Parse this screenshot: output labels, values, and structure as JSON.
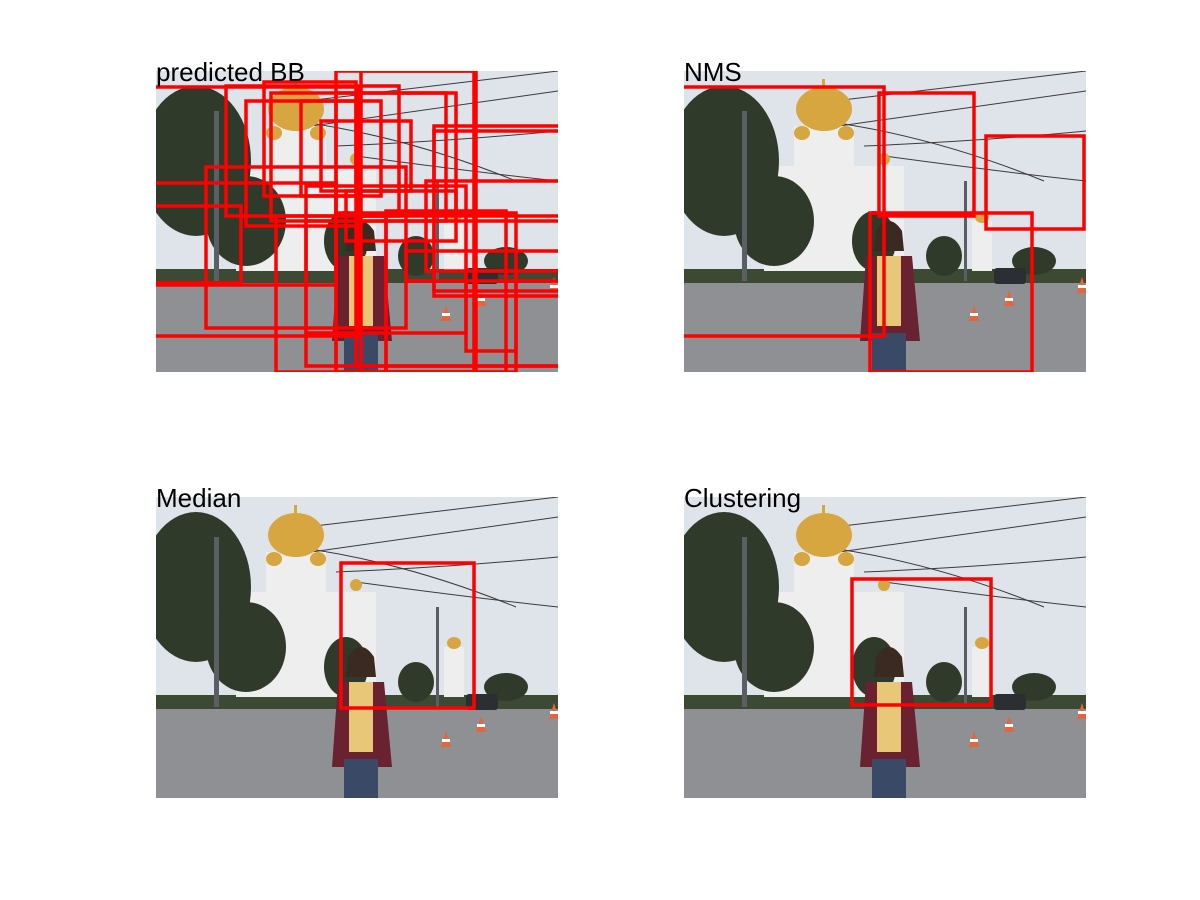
{
  "panels": [
    {
      "title": "predicted BB"
    },
    {
      "title": "NMS"
    },
    {
      "title": "Median"
    },
    {
      "title": "Clustering"
    }
  ],
  "colors": {
    "box": "#ff0000",
    "sky": "#dfe4ea",
    "road": "#8f9094",
    "tree": "#2f3a2a",
    "gold": "#d8a640",
    "cathedral": "#eeeeee",
    "jacket": "#6a2230",
    "shirt": "#e8c878"
  },
  "scene_icons": [
    "cathedral-icon",
    "tree-icon",
    "traffic-cone-icon",
    "woman-figure-icon",
    "car-icon",
    "power-lines-icon"
  ]
}
